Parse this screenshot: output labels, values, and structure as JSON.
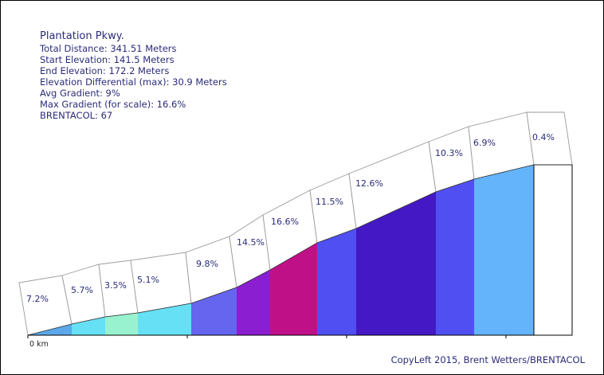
{
  "header": {
    "title": "Plantation Pkwy.",
    "lines": [
      "Total Distance: 341.51 Meters",
      "Start Elevation: 141.5 Meters",
      "End Elevation: 172.2 Meters",
      "Elevation Differential (max): 30.9 Meters",
      "Avg Gradient: 9%",
      "Max Gradient (for scale): 16.6%",
      "BRENTACOL: 67"
    ]
  },
  "footer": {
    "credit": "CopyLeft 2015, Brent Wetters/BRENTACOL"
  },
  "chart_data": {
    "type": "area",
    "x_tick_label": "0 km",
    "segments": [
      {
        "label": "7.2%",
        "gradient": 7.2,
        "color": "#5ba8ea"
      },
      {
        "label": "5.7%",
        "gradient": 5.7,
        "color": "#66e0f5"
      },
      {
        "label": "3.5%",
        "gradient": 3.5,
        "color": "#99f2cf"
      },
      {
        "label": "5.1%",
        "gradient": 5.1,
        "color": "#66e0f5"
      },
      {
        "label": "9.8%",
        "gradient": 9.8,
        "color": "#6565f0"
      },
      {
        "label": "14.5%",
        "gradient": 14.5,
        "color": "#8a1ed0"
      },
      {
        "label": "16.6%",
        "gradient": 16.6,
        "color": "#c01088"
      },
      {
        "label": "11.5%",
        "gradient": 11.5,
        "color": "#5050f2"
      },
      {
        "label": "12.6%",
        "gradient": 12.6,
        "color": "#4418c4"
      },
      {
        "label": "10.3%",
        "gradient": 10.3,
        "color": "#5050f2"
      },
      {
        "label": "6.9%",
        "gradient": 6.9,
        "color": "#64b4fc"
      },
      {
        "label": "0.4%",
        "gradient": 0.4,
        "color": "#ffffff"
      }
    ]
  }
}
